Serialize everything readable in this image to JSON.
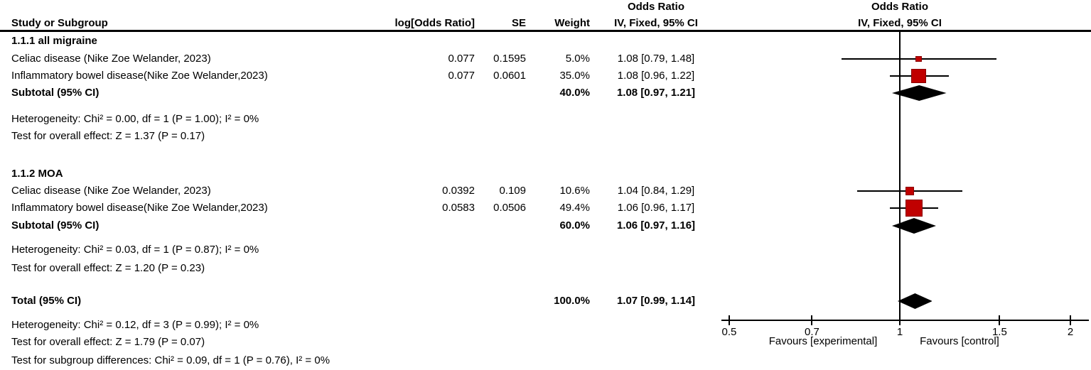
{
  "columns": {
    "study": "Study or Subgroup",
    "log_or": "log[Odds Ratio]",
    "se": "SE",
    "weight": "Weight",
    "or_line1": "Odds Ratio",
    "or_line2": "IV, Fixed, 95% CI"
  },
  "colors": {
    "square": "#c00000",
    "square_border": "#8a0000",
    "diamond": "#000000",
    "line": "#000000",
    "text": "#000000"
  },
  "chart_data": {
    "type": "forest",
    "effect_measure": "Odds Ratio",
    "method": "IV, Fixed, 95% CI",
    "x_axis": {
      "scale": "log",
      "min": 0.5,
      "max": 2,
      "ticks": [
        0.5,
        0.7,
        1,
        1.5,
        2
      ],
      "tick_labels": [
        "0.5",
        "0.7",
        "1",
        "1.5",
        "2"
      ],
      "left_label": "Favours [experimental]",
      "right_label": "Favours [control]"
    },
    "sections": [
      {
        "label": "1.1.1 all migraine",
        "studies": [
          {
            "name": "Celiac disease (Nike Zoe Welander, 2023)",
            "log_or": "0.077",
            "se": "0.1595",
            "weight": "5.0%",
            "weight_pct": 5.0,
            "ci_text": "1.08 [0.79, 1.48]",
            "or": 1.08,
            "lo": 0.79,
            "hi": 1.48
          },
          {
            "name": "Inflammatory bowel disease(Nike Zoe Welander,2023)",
            "log_or": "0.077",
            "se": "0.0601",
            "weight": "35.0%",
            "weight_pct": 35.0,
            "ci_text": "1.08 [0.96, 1.22]",
            "or": 1.08,
            "lo": 0.96,
            "hi": 1.22
          }
        ],
        "subtotal": {
          "label": "Subtotal (95% CI)",
          "weight": "40.0%",
          "ci_text": "1.08 [0.97, 1.21]",
          "or": 1.08,
          "lo": 0.97,
          "hi": 1.21
        },
        "heterogeneity": "Heterogeneity: Chi² = 0.00, df = 1 (P = 1.00); I² = 0%",
        "overall_effect": "Test for overall effect: Z = 1.37 (P = 0.17)"
      },
      {
        "label": "1.1.2 MOA",
        "studies": [
          {
            "name": "Celiac disease (Nike Zoe Welander, 2023)",
            "log_or": "0.0392",
            "se": "0.109",
            "weight": "10.6%",
            "weight_pct": 10.6,
            "ci_text": "1.04 [0.84, 1.29]",
            "or": 1.04,
            "lo": 0.84,
            "hi": 1.29
          },
          {
            "name": "Inflammatory bowel disease(Nike Zoe Welander,2023)",
            "log_or": "0.0583",
            "se": "0.0506",
            "weight": "49.4%",
            "weight_pct": 49.4,
            "ci_text": "1.06 [0.96, 1.17]",
            "or": 1.06,
            "lo": 0.96,
            "hi": 1.17
          }
        ],
        "subtotal": {
          "label": "Subtotal (95% CI)",
          "weight": "60.0%",
          "ci_text": "1.06 [0.97, 1.16]",
          "or": 1.06,
          "lo": 0.97,
          "hi": 1.16
        },
        "heterogeneity": "Heterogeneity: Chi² = 0.03, df = 1 (P = 0.87); I² = 0%",
        "overall_effect": "Test for overall effect: Z = 1.20 (P = 0.23)"
      }
    ],
    "total": {
      "label": "Total (95% CI)",
      "weight": "100.0%",
      "ci_text": "1.07 [0.99, 1.14]",
      "or": 1.07,
      "lo": 0.99,
      "hi": 1.14,
      "heterogeneity": "Heterogeneity: Chi² = 0.12, df = 3 (P = 0.99); I² = 0%",
      "overall_effect": "Test for overall effect: Z = 1.79 (P = 0.07)",
      "subgroup_differences": "Test for subgroup differences: Chi² = 0.09, df = 1 (P = 0.76), I² = 0%"
    }
  }
}
